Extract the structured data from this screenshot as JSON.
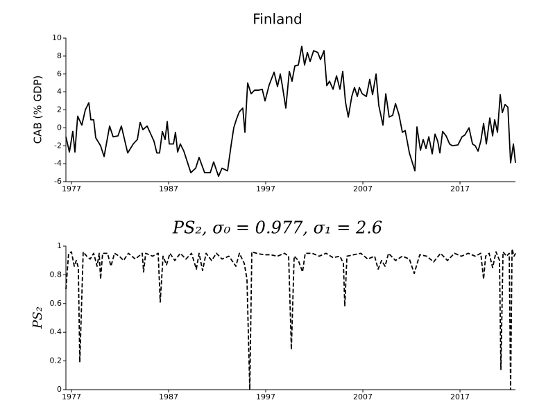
{
  "chart_data": [
    {
      "type": "line",
      "title": "Finland",
      "y_label": "CAB (% GDP)",
      "color": "#000000",
      "line_style": "solid",
      "x": [
        1976.43,
        1976.79,
        1977.14,
        1977.36,
        1977.64,
        1978.07,
        1978.43,
        1978.79,
        1979.0,
        1979.29,
        1979.5,
        1980.0,
        1980.36,
        1980.93,
        1981.29,
        1981.79,
        1982.14,
        1982.79,
        1983.36,
        1983.79,
        1984.07,
        1984.36,
        1984.79,
        1985.5,
        1985.79,
        1986.07,
        1986.36,
        1986.64,
        1986.86,
        1987.07,
        1987.5,
        1987.71,
        1987.93,
        1988.21,
        1988.57,
        1988.93,
        1989.29,
        1989.79,
        1990.14,
        1990.71,
        1991.29,
        1991.64,
        1992.14,
        1992.5,
        1993.07,
        1993.43,
        1993.71,
        1994.0,
        1994.29,
        1994.64,
        1994.86,
        1995.14,
        1995.5,
        1995.86,
        1996.29,
        1996.64,
        1996.93,
        1997.36,
        1997.86,
        1998.21,
        1998.5,
        1998.71,
        1999.07,
        1999.43,
        1999.71,
        2000.0,
        2000.36,
        2000.71,
        2001.0,
        2001.29,
        2001.57,
        2001.93,
        2002.36,
        2002.64,
        2003.0,
        2003.29,
        2003.57,
        2003.93,
        2004.29,
        2004.64,
        2004.93,
        2005.21,
        2005.5,
        2005.86,
        2006.14,
        2006.43,
        2006.64,
        2006.93,
        2007.36,
        2007.71,
        2008.0,
        2008.36,
        2008.64,
        2009.07,
        2009.36,
        2009.71,
        2010.07,
        2010.36,
        2010.71,
        2011.07,
        2011.36,
        2011.79,
        2012.36,
        2012.57,
        2012.93,
        2013.21,
        2013.5,
        2013.79,
        2014.14,
        2014.43,
        2014.71,
        2014.93,
        2015.21,
        2015.57,
        2015.93,
        2016.21,
        2016.79,
        2017.21,
        2017.5,
        2017.93,
        2018.29,
        2018.57,
        2018.86,
        2019.14,
        2019.43,
        2019.71,
        2020.07,
        2020.36,
        2020.57,
        2020.86,
        2021.14,
        2021.36,
        2021.64,
        2021.93,
        2022.21,
        2022.5,
        2022.71
      ],
      "values": [
        -1,
        -2.7,
        -0.4,
        -2.7,
        1.3,
        0.3,
        2,
        2.8,
        0.9,
        0.9,
        -1.1,
        -2,
        -3.2,
        0.2,
        -1,
        -0.9,
        0.2,
        -2.8,
        -1.8,
        -1.3,
        0.6,
        -0.2,
        0.2,
        -1.5,
        -2.8,
        -2.8,
        -0.4,
        -1.3,
        0.7,
        -1.8,
        -1.8,
        -0.5,
        -2.7,
        -1.8,
        -2.6,
        -3.8,
        -5,
        -4.5,
        -3.3,
        -5,
        -5,
        -3.8,
        -5.4,
        -4.5,
        -4.8,
        -2,
        0,
        1,
        1.8,
        2.2,
        -0.5,
        5,
        3.8,
        4.2,
        4.2,
        4.3,
        3,
        4.8,
        6.2,
        4.6,
        6,
        4.7,
        2.2,
        6.3,
        5.2,
        6.9,
        7,
        9.1,
        7,
        8.4,
        7.4,
        8.6,
        8.4,
        7.6,
        8.6,
        4.7,
        5.2,
        4.3,
        5.8,
        4.3,
        6.3,
        2.9,
        1.2,
        3.5,
        4.5,
        3.5,
        4.5,
        3.8,
        3.5,
        5.4,
        3.7,
        6,
        2.5,
        0.3,
        3.8,
        1.2,
        1.4,
        2.7,
        1.5,
        -0.5,
        -0.3,
        -2.8,
        -4.8,
        0.1,
        -2.5,
        -1.3,
        -2.3,
        -1,
        -2.9,
        -0.7,
        -1.5,
        -2.8,
        -0.4,
        -0.9,
        -1.8,
        -2,
        -1.9,
        -1,
        -0.8,
        0,
        -1.8,
        -2,
        -2.6,
        -1.5,
        0.5,
        -1.8,
        1.1,
        -0.9,
        0.9,
        -0.5,
        3.7,
        1.7,
        2.6,
        2.3,
        -3.9,
        -1.8,
        -3.9
      ],
      "xlim": [
        1976.43,
        2022.71
      ],
      "xticks": [
        1977,
        1987,
        1997,
        2007,
        2017
      ],
      "ylim": [
        -6,
        10
      ],
      "yticks": [
        -6,
        -4,
        -2,
        0,
        2,
        4,
        6,
        8,
        10
      ]
    },
    {
      "type": "line",
      "title": "PS₂, σ₀ = 0.977, σ₁ = 2.6",
      "y_label": "PS₂",
      "color": "#000000",
      "line_style": "dashed",
      "x": [
        1976.43,
        1976.71,
        1977.0,
        1977.29,
        1977.5,
        1977.71,
        1977.86,
        1978.21,
        1978.57,
        1978.93,
        1979.29,
        1979.64,
        1979.86,
        1980.0,
        1980.21,
        1980.71,
        1981.07,
        1981.43,
        1981.93,
        1982.36,
        1982.86,
        1983.57,
        1984.29,
        1984.43,
        1984.64,
        1985.36,
        1985.93,
        1986.14,
        1986.43,
        1986.79,
        1987.14,
        1987.64,
        1988.21,
        1988.79,
        1989.36,
        1989.86,
        1990.14,
        1990.5,
        1990.86,
        1991.43,
        1991.93,
        1992.5,
        1993.21,
        1993.93,
        1994.29,
        1994.79,
        1995.07,
        1995.36,
        1995.57,
        1996.07,
        1996.79,
        1997.5,
        1998.21,
        1998.93,
        1999.36,
        1999.64,
        1999.93,
        2000.36,
        2000.79,
        2001.07,
        2001.79,
        2002.5,
        2003.21,
        2003.93,
        2004.64,
        2005.0,
        2005.14,
        2005.36,
        2006.07,
        2006.79,
        2007.5,
        2008.21,
        2008.57,
        2008.93,
        2009.29,
        2009.64,
        2010.36,
        2011.07,
        2011.79,
        2012.29,
        2012.86,
        2013.57,
        2014.29,
        2015.0,
        2015.71,
        2016.43,
        2017.14,
        2017.86,
        2018.57,
        2019.14,
        2019.43,
        2019.64,
        2020.0,
        2020.36,
        2020.71,
        2021.07,
        2021.21,
        2021.43,
        2021.79,
        2022.07,
        2022.21,
        2022.36,
        2022.57,
        2022.71
      ],
      "values": [
        0.7,
        0.95,
        0.96,
        0.86,
        0.9,
        0.85,
        0.19,
        0.96,
        0.93,
        0.91,
        0.95,
        0.86,
        0.95,
        0.77,
        0.95,
        0.95,
        0.86,
        0.95,
        0.93,
        0.9,
        0.95,
        0.91,
        0.95,
        0.82,
        0.95,
        0.93,
        0.95,
        0.61,
        0.93,
        0.87,
        0.95,
        0.9,
        0.95,
        0.91,
        0.95,
        0.84,
        0.95,
        0.83,
        0.95,
        0.9,
        0.95,
        0.91,
        0.93,
        0.86,
        0.95,
        0.88,
        0.77,
        0,
        0.96,
        0.95,
        0.94,
        0.94,
        0.93,
        0.95,
        0.93,
        0.28,
        0.93,
        0.9,
        0.82,
        0.95,
        0.95,
        0.93,
        0.95,
        0.92,
        0.93,
        0.88,
        0.58,
        0.93,
        0.94,
        0.95,
        0.91,
        0.93,
        0.84,
        0.9,
        0.86,
        0.95,
        0.9,
        0.93,
        0.91,
        0.81,
        0.94,
        0.93,
        0.89,
        0.95,
        0.9,
        0.95,
        0.93,
        0.95,
        0.93,
        0.95,
        0.77,
        0.93,
        0.95,
        0.85,
        0.96,
        0.9,
        0.14,
        0.96,
        0.93,
        0.95,
        0,
        0.98,
        0.93,
        0.95
      ],
      "xlim": [
        1976.43,
        2022.71
      ],
      "xticks": [
        1977,
        1987,
        1997,
        2007,
        2017
      ],
      "ylim": [
        0,
        1
      ],
      "yticks": [
        0,
        0.2,
        0.4,
        0.6,
        0.8,
        1
      ]
    }
  ]
}
